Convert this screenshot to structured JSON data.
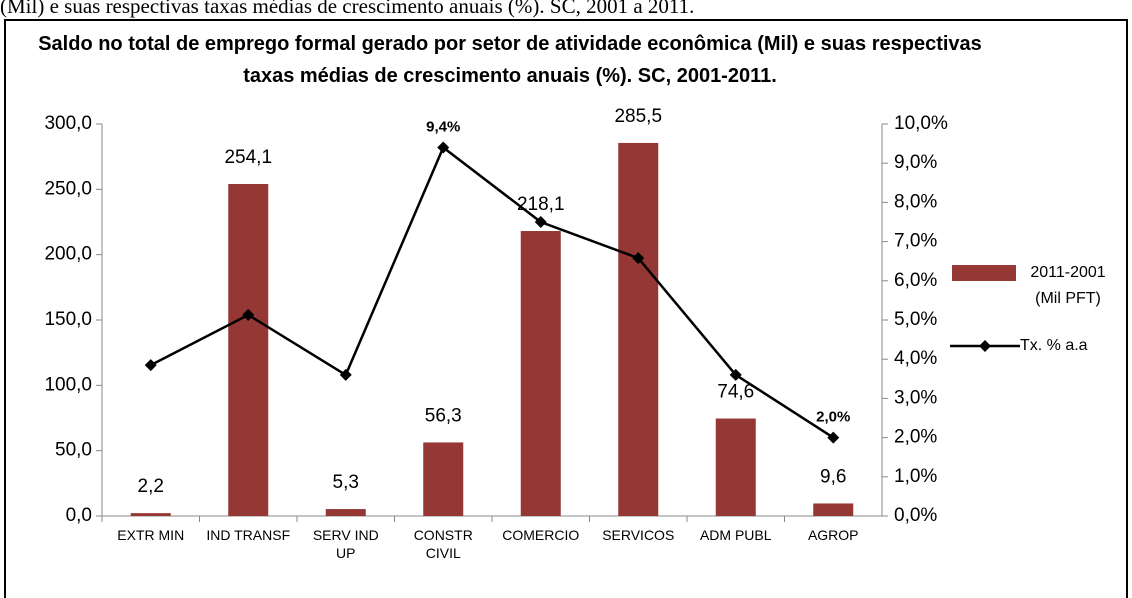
{
  "caption": "(Mil) e suas respectivas taxas médias de crescimento anuais (%). SC, 2001 a 2011.",
  "chart_data": {
    "type": "bar",
    "title": "Saldo no total de emprego formal gerado por setor de atividade econômica  (Mil) e suas respectivas taxas médias de crescimento anuais (%). SC, 2001-2011.",
    "categories": [
      "EXTR MIN",
      "IND TRANSF",
      "SERV IND UP",
      "CONSTR CIVIL",
      "COMERCIO",
      "SERVICOS",
      "ADM PUBL",
      "AGROP"
    ],
    "series": [
      {
        "name": "2011-2001 (Mil PFT)",
        "type": "bar",
        "color": "#953735",
        "values": [
          2.2,
          254.1,
          5.3,
          56.3,
          218.1,
          285.5,
          74.6,
          9.6
        ],
        "value_labels": [
          "2,2",
          "254,1",
          "5,3",
          "56,3",
          "218,1",
          "285,5",
          "74,6",
          "9,6"
        ]
      },
      {
        "name": "Tx. % a.a",
        "type": "line",
        "axis": "y2",
        "color": "#000000",
        "values": [
          3.85,
          5.13,
          3.6,
          9.4,
          7.5,
          6.58,
          3.6,
          2.0
        ],
        "value_labels": [
          null,
          null,
          null,
          "9,4%",
          null,
          null,
          null,
          "2,0%"
        ]
      }
    ],
    "ylim": [
      0,
      300
    ],
    "yticks": [
      {
        "value": 0,
        "label": "0,0"
      },
      {
        "value": 50,
        "label": "50,0"
      },
      {
        "value": 100,
        "label": "100,0"
      },
      {
        "value": 150,
        "label": "150,0"
      },
      {
        "value": 200,
        "label": "200,0"
      },
      {
        "value": 250,
        "label": "250,0"
      },
      {
        "value": 300,
        "label": "300,0"
      }
    ],
    "y2lim": [
      0,
      10
    ],
    "y2ticks": [
      {
        "value": 0,
        "label": "0,0%"
      },
      {
        "value": 1,
        "label": "1,0%"
      },
      {
        "value": 2,
        "label": "2,0%"
      },
      {
        "value": 3,
        "label": "3,0%"
      },
      {
        "value": 4,
        "label": "4,0%"
      },
      {
        "value": 5,
        "label": "5,0%"
      },
      {
        "value": 6,
        "label": "6,0%"
      },
      {
        "value": 7,
        "label": "7,0%"
      },
      {
        "value": 8,
        "label": "8,0%"
      },
      {
        "value": 9,
        "label": "9,0%"
      },
      {
        "value": 10,
        "label": "10,0%"
      }
    ],
    "legend": "right"
  }
}
